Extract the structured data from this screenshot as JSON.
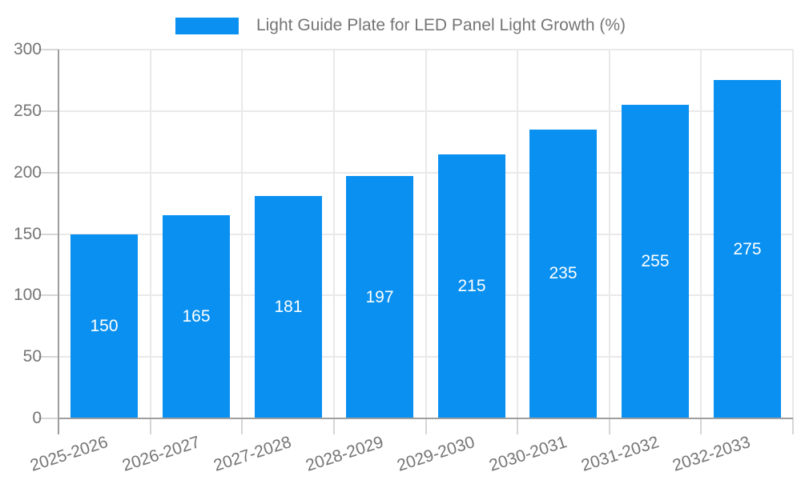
{
  "chart_data": {
    "type": "bar",
    "title": "Light Guide Plate for LED Panel Light Growth (%)",
    "categories": [
      "2025-2026",
      "2026-2027",
      "2027-2028",
      "2028-2029",
      "2029-2030",
      "2030-2031",
      "2031-2032",
      "2032-2033"
    ],
    "values": [
      150,
      165,
      181,
      197,
      215,
      235,
      255,
      275
    ],
    "xlabel": "",
    "ylabel": "",
    "ylim": [
      0,
      300
    ],
    "ytick_step": 50,
    "ytick_labels": [
      "0",
      "50",
      "100",
      "150",
      "200",
      "250",
      "300"
    ],
    "grid": true,
    "legend_position": "top",
    "bar_labels_inside": true,
    "x_label_rotation_deg": -18,
    "colors": {
      "bar": "#0a90f0",
      "grid": "#e9e9e9",
      "axis": "#9e9e9e",
      "tick": "#d6d6d6",
      "text": "#757575",
      "bar_label": "#ffffff",
      "background": "#ffffff"
    }
  }
}
